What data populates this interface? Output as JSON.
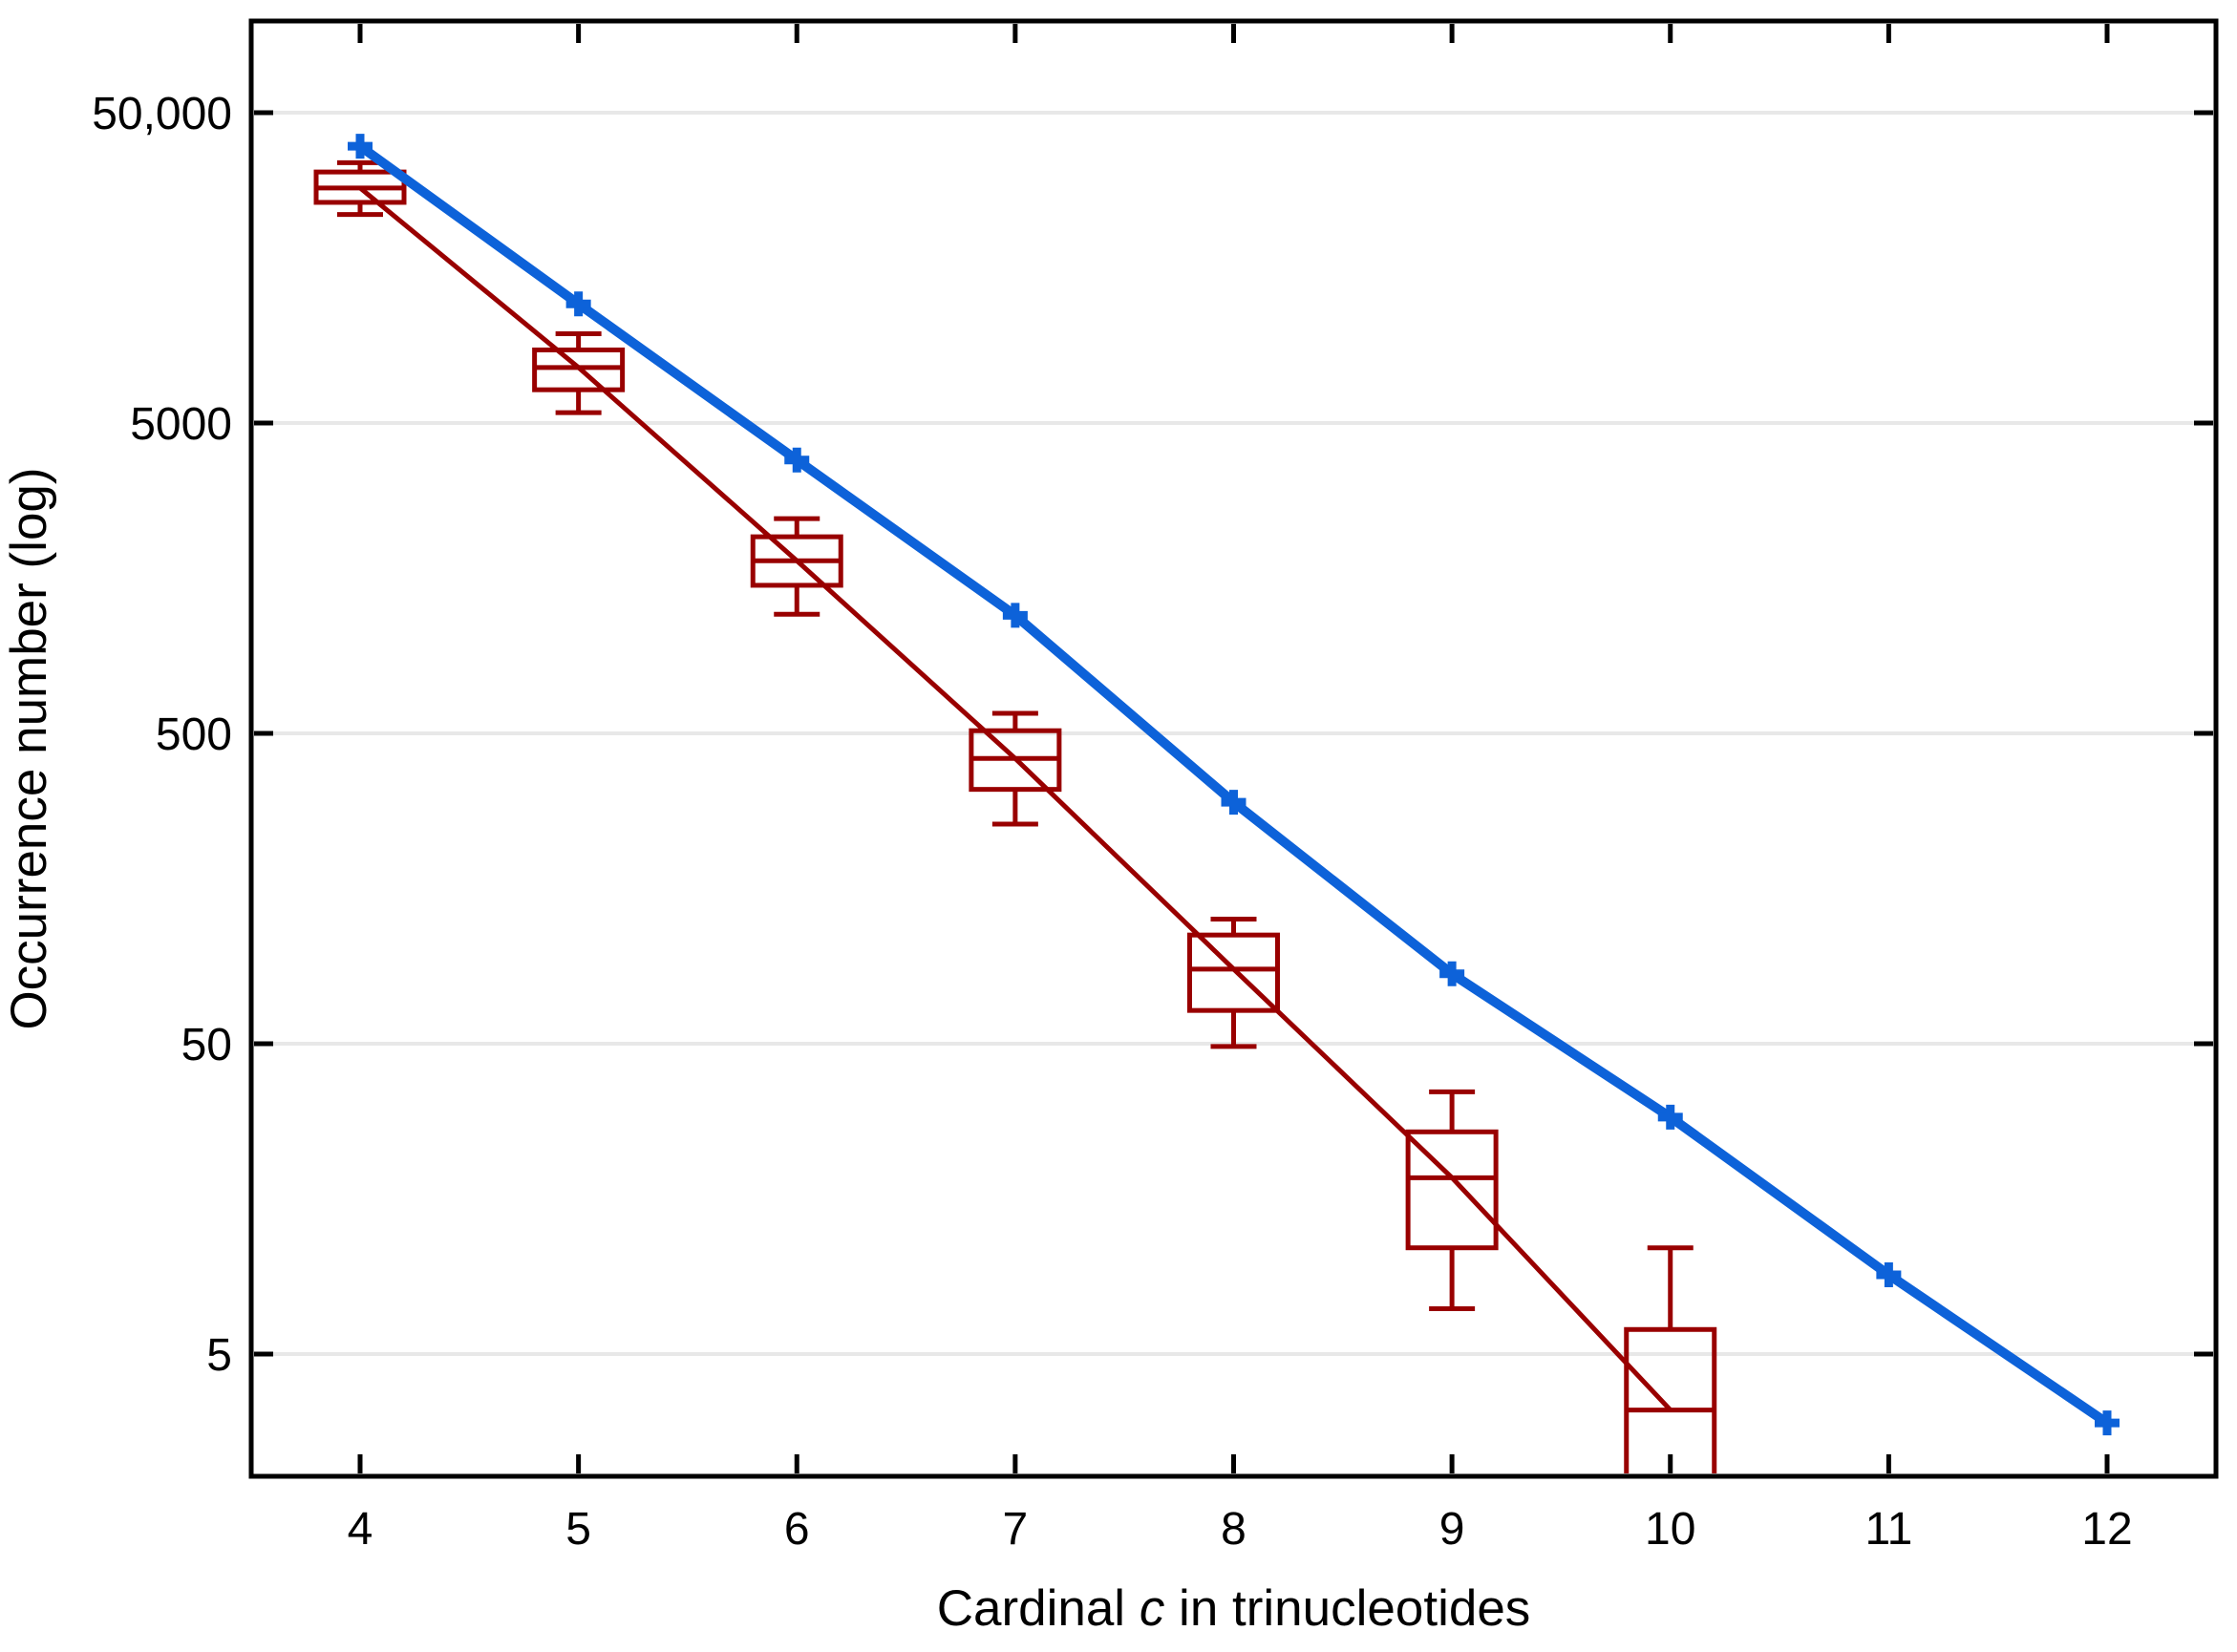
{
  "figure": {
    "background": "#ffffff"
  },
  "chart_data": {
    "type": "line+boxplot",
    "title": "",
    "xlabel": "Cardinal c in trinucleotides",
    "xlabel_parts": {
      "prefix": "Cardinal ",
      "italic": "c",
      "suffix": " in trinucleotides"
    },
    "ylabel": "Occurrence number (log)",
    "x_axis": {
      "range": [
        3.5,
        12.5
      ],
      "ticks": [
        4,
        5,
        6,
        7,
        8,
        9,
        10,
        11,
        12
      ]
    },
    "y_axis": {
      "scale": "log",
      "range_approx": [
        2,
        100000
      ],
      "tick_values": [
        50000,
        5000,
        500,
        50,
        5
      ],
      "tick_labels": [
        "50,000",
        "5000",
        "500",
        "50",
        "5"
      ],
      "grid": true
    },
    "legend": "none",
    "series": [
      {
        "name": "total-occurrence-line",
        "type": "line",
        "marker": "plus",
        "color": "#0d62d9",
        "x": [
          4,
          5,
          6,
          7,
          8,
          9,
          10,
          11,
          12
        ],
        "y": [
          39000,
          12100,
          3800,
          1200,
          300,
          84,
          29,
          9,
          3
        ]
      },
      {
        "name": "occurrence-boxplots",
        "type": "boxplot",
        "color": "#990000",
        "connect_medians": true,
        "boxes": [
          {
            "x": 4,
            "whisker_low": 23500,
            "q1": 25700,
            "median": 28600,
            "q3": 32200,
            "whisker_high": 34500
          },
          {
            "x": 5,
            "whisker_low": 5400,
            "q1": 6400,
            "median": 7550,
            "q3": 8600,
            "whisker_high": 9700
          },
          {
            "x": 6,
            "whisker_low": 1210,
            "q1": 1500,
            "median": 1800,
            "q3": 2150,
            "whisker_high": 2460
          },
          {
            "x": 7,
            "whisker_low": 255,
            "q1": 330,
            "median": 415,
            "q3": 510,
            "whisker_high": 580
          },
          {
            "x": 8,
            "whisker_low": 49,
            "q1": 64,
            "median": 87,
            "q3": 112,
            "whisker_high": 126
          },
          {
            "x": 9,
            "whisker_low": 7,
            "q1": 11,
            "median": 18.5,
            "q3": 26,
            "whisker_high": 35
          },
          {
            "x": 10,
            "whisker_low": null,
            "q1": null,
            "median": 3.3,
            "q3": 6,
            "whisker_high": 11,
            "clipped_below_axis": true
          }
        ]
      }
    ],
    "colors": {
      "line": "#0d62d9",
      "box": "#990000",
      "grid": "#e8e8e8",
      "frame": "#000000"
    }
  }
}
